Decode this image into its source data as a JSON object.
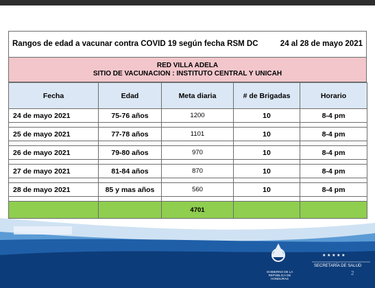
{
  "header": {
    "title": "Rangos de edad a vacunar contra COVID 19 según fecha RSM DC",
    "dates": "24 al 28 de mayo 2021"
  },
  "site": {
    "network": "RED VILLA ADELA",
    "location": "SITIO DE VACUNACION : INSTITUTO CENTRAL Y UNICAH"
  },
  "table": {
    "columns": [
      "Fecha",
      "Edad",
      "Meta diaria",
      "# de Brigadas",
      "Horario"
    ],
    "rows": [
      [
        "24 de mayo 2021",
        "75-76 años",
        "1200",
        "10",
        "8-4 pm"
      ],
      [
        "25 de mayo 2021",
        "77-78 años",
        "1101",
        "10",
        "8-4 pm"
      ],
      [
        "26 de mayo 2021",
        "79-80 años",
        "970",
        "10",
        "8-4 pm"
      ],
      [
        "27 de mayo 2021",
        "81-84 años",
        "870",
        "10",
        "8-4 pm"
      ],
      [
        "28 de mayo 2021",
        "85 y mas años",
        "560",
        "10",
        "8-4 pm"
      ]
    ],
    "total": "4701"
  },
  "footer": {
    "government": "GOBIERNO DE LA REPÚBLICA DE HONDURAS",
    "ministry": "SECRETARÍA DE SALUD",
    "page": "2"
  }
}
